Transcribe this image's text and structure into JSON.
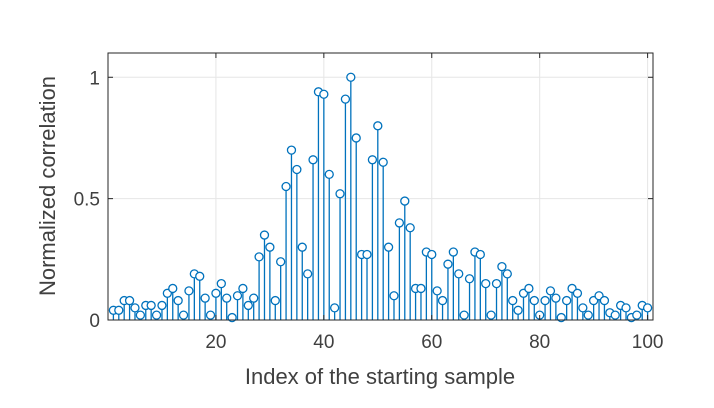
{
  "chart_data": {
    "type": "stem",
    "xlabel": "Index of the starting sample",
    "ylabel": "Normalized correlation",
    "xlim": [
      0,
      101
    ],
    "ylim": [
      0,
      1.1
    ],
    "xticks": [
      20,
      40,
      60,
      80,
      100
    ],
    "yticks": [
      0,
      0.5,
      1
    ],
    "ytick_labels": [
      "0",
      "0.5",
      "1"
    ],
    "grid": true,
    "box": true,
    "colors": {
      "series": "#0072BD",
      "grid": "#e6e6e6",
      "axes": "#262626"
    },
    "x": [
      1,
      2,
      3,
      4,
      5,
      6,
      7,
      8,
      9,
      10,
      11,
      12,
      13,
      14,
      15,
      16,
      17,
      18,
      19,
      20,
      21,
      22,
      23,
      24,
      25,
      26,
      27,
      28,
      29,
      30,
      31,
      32,
      33,
      34,
      35,
      36,
      37,
      38,
      39,
      40,
      41,
      42,
      43,
      44,
      45,
      46,
      47,
      48,
      49,
      50,
      51,
      52,
      53,
      54,
      55,
      56,
      57,
      58,
      59,
      60,
      61,
      62,
      63,
      64,
      65,
      66,
      67,
      68,
      69,
      70,
      71,
      72,
      73,
      74,
      75,
      76,
      77,
      78,
      79,
      80,
      81,
      82,
      83,
      84,
      85,
      86,
      87,
      88,
      89,
      90,
      91,
      92,
      93,
      94,
      95,
      96,
      97,
      98,
      99,
      100
    ],
    "values": [
      0.04,
      0.04,
      0.08,
      0.08,
      0.05,
      0.02,
      0.06,
      0.06,
      0.02,
      0.06,
      0.11,
      0.13,
      0.08,
      0.02,
      0.12,
      0.19,
      0.18,
      0.09,
      0.02,
      0.11,
      0.15,
      0.09,
      0.01,
      0.1,
      0.13,
      0.06,
      0.09,
      0.26,
      0.35,
      0.3,
      0.08,
      0.24,
      0.55,
      0.7,
      0.62,
      0.3,
      0.19,
      0.66,
      0.94,
      0.93,
      0.6,
      0.05,
      0.52,
      0.91,
      1.0,
      0.75,
      0.27,
      0.27,
      0.66,
      0.8,
      0.65,
      0.3,
      0.1,
      0.4,
      0.49,
      0.38,
      0.13,
      0.13,
      0.28,
      0.27,
      0.12,
      0.08,
      0.23,
      0.28,
      0.19,
      0.02,
      0.17,
      0.28,
      0.27,
      0.15,
      0.02,
      0.15,
      0.22,
      0.19,
      0.08,
      0.04,
      0.11,
      0.13,
      0.08,
      0.02,
      0.08,
      0.12,
      0.09,
      0.01,
      0.08,
      0.13,
      0.11,
      0.05,
      0.02,
      0.08,
      0.1,
      0.08,
      0.03,
      0.02,
      0.06,
      0.05,
      0.01,
      0.02,
      0.06,
      0.05
    ]
  }
}
